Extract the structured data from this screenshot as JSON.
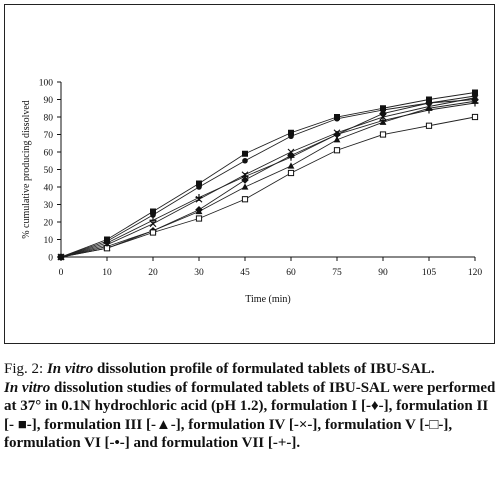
{
  "chart_data": {
    "type": "line",
    "ylabel": "% cumulative producing dissolved",
    "xlabel": "Time (min)",
    "x": [
      "0",
      "10",
      "20",
      "30",
      "45",
      "60",
      "75",
      "90",
      "105",
      "120"
    ],
    "ylim": [
      0,
      100
    ],
    "yticks": [
      "0",
      "10",
      "20",
      "30",
      "40",
      "50",
      "60",
      "70",
      "80",
      "90",
      "100"
    ],
    "grid": false,
    "series": [
      {
        "name": "formulation I",
        "marker": "diamond",
        "values": [
          0,
          6,
          15,
          27,
          44,
          58,
          70,
          82,
          88,
          90
        ]
      },
      {
        "name": "formulation II",
        "marker": "square",
        "values": [
          0,
          10,
          26,
          42,
          59,
          71,
          80,
          85,
          90,
          94
        ]
      },
      {
        "name": "formulation III",
        "marker": "triangle",
        "values": [
          0,
          5,
          15,
          26,
          40,
          52,
          67,
          77,
          85,
          89
        ]
      },
      {
        "name": "formulation IV",
        "marker": "x",
        "values": [
          0,
          7,
          19,
          33,
          47,
          60,
          71,
          80,
          86,
          91
        ]
      },
      {
        "name": "formulation V",
        "marker": "open-square",
        "values": [
          0,
          5,
          14,
          22,
          33,
          48,
          61,
          70,
          75,
          80
        ]
      },
      {
        "name": "formulation VI",
        "marker": "circle",
        "values": [
          0,
          9,
          24,
          40,
          55,
          69,
          79,
          84,
          88,
          92
        ]
      },
      {
        "name": "formulation VII",
        "marker": "plus",
        "values": [
          0,
          8,
          21,
          34,
          46,
          57,
          70,
          78,
          84,
          88
        ]
      }
    ]
  },
  "caption": {
    "fig_prefix": "Fig. 2: ",
    "fig_italic": "In vitro",
    "fig_rest": " dissolution profile of formulated tablets of IBU-SAL.",
    "body_italic": "In vitro",
    "body_rest": " dissolution studies of formulated tablets of IBU-SAL were performed at 37° in 0.1N hydrochloric acid (pH 1.2), formulation I [-♦-], formulation II [- ■-], formulation III [-▲-], formulation IV [-×-], formulation V [-□-], formulation VI [-•-] and formulation VII [-+-]."
  }
}
